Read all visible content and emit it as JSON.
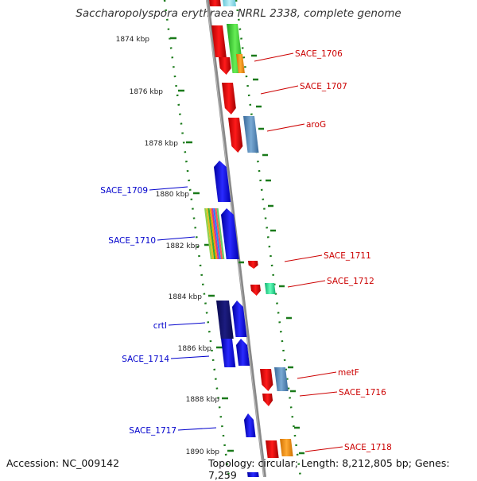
{
  "title": "Saccharopolyspora erythraea NRRL 2338, complete genome",
  "footer": {
    "accession": "Accession: NC_009142",
    "summary": "Topology: circular; Length: 8,212,805 bp; Genes: 7,259"
  },
  "colors": {
    "forward_label": "#cc0000",
    "reverse_label": "#0000cc",
    "backbone": "#888888",
    "tick": "#1a7a1a"
  },
  "kbp_ticks": [
    "1874 kbp",
    "1876 kbp",
    "1878 kbp",
    "1880 kbp",
    "1882 kbp",
    "1884 kbp",
    "1886 kbp",
    "1888 kbp",
    "1890 kbp"
  ],
  "gene_labels": [
    {
      "text": "SACE_1706",
      "strand": "forward"
    },
    {
      "text": "SACE_1707",
      "strand": "forward"
    },
    {
      "text": "aroG",
      "strand": "forward"
    },
    {
      "text": "SACE_1709",
      "strand": "reverse"
    },
    {
      "text": "SACE_1710",
      "strand": "reverse"
    },
    {
      "text": "SACE_1711",
      "strand": "forward"
    },
    {
      "text": "SACE_1712",
      "strand": "forward"
    },
    {
      "text": "crtI",
      "strand": "reverse"
    },
    {
      "text": "SACE_1714",
      "strand": "reverse"
    },
    {
      "text": "metF",
      "strand": "forward"
    },
    {
      "text": "SACE_1716",
      "strand": "forward"
    },
    {
      "text": "SACE_1717",
      "strand": "reverse"
    },
    {
      "text": "SACE_1718",
      "strand": "forward"
    }
  ]
}
